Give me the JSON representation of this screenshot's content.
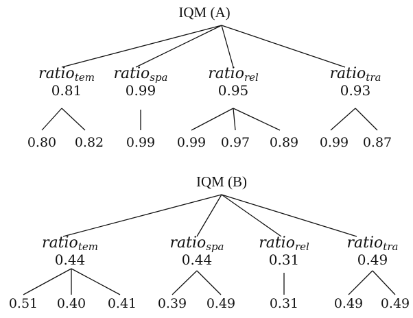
{
  "trees": [
    {
      "root": "IQM (A)",
      "children": [
        {
          "label": "ratio",
          "sub": "tem",
          "value": "0.81",
          "leaves": [
            "0.80",
            "0.82"
          ]
        },
        {
          "label": "ratio",
          "sub": "spa",
          "value": "0.99",
          "leaves": [
            "0.99"
          ]
        },
        {
          "label": "ratio",
          "sub": "rel",
          "value": "0.95",
          "leaves": [
            "0.99",
            "0.97",
            "0.89"
          ]
        },
        {
          "label": "ratio",
          "sub": "tra",
          "value": "0.93",
          "leaves": [
            "0.99",
            "0.87"
          ]
        }
      ]
    },
    {
      "root": "IQM (B)",
      "children": [
        {
          "label": "ratio",
          "sub": "tem",
          "value": "0.44",
          "leaves": [
            "0.51",
            "0.40",
            "0.41"
          ]
        },
        {
          "label": "ratio",
          "sub": "spa",
          "value": "0.44",
          "leaves": [
            "0.39",
            "0.49"
          ]
        },
        {
          "label": "ratio",
          "sub": "rel",
          "value": "0.31",
          "leaves": [
            "0.31"
          ]
        },
        {
          "label": "ratio",
          "sub": "tra",
          "value": "0.49",
          "leaves": [
            "0.49",
            "0.49"
          ]
        }
      ]
    }
  ]
}
